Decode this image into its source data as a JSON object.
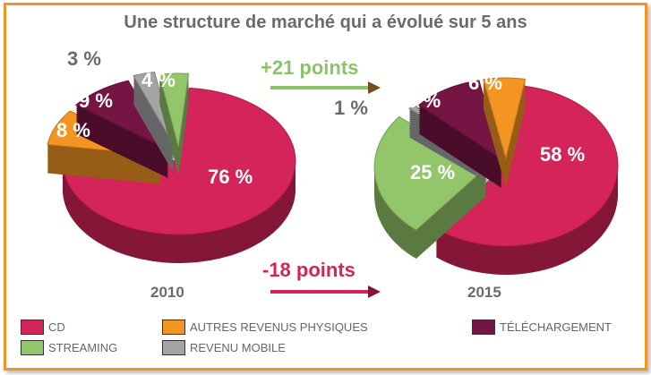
{
  "chart_data": {
    "type": "pie",
    "title": "Une structure de marché qui a évolué sur 5 ans",
    "categories": [
      "CD",
      "AUTRES REVENUS PHYSIQUES",
      "TÉLÉCHARGEMENT",
      "STREAMING",
      "REVENU MOBILE"
    ],
    "colors": {
      "CD": "#d5245a",
      "AUTRES REVENUS PHYSIQUES": "#f39423",
      "TÉLÉCHARGEMENT": "#751543",
      "STREAMING": "#93c56b",
      "REVENU MOBILE": "#a4a4a7"
    },
    "pies": [
      {
        "year": "2010",
        "values": {
          "CD": 76,
          "AUTRES REVENUS PHYSIQUES": 8,
          "TÉLÉCHARGEMENT": 9,
          "REVENU MOBILE": 3,
          "STREAMING": 4
        },
        "labels": {
          "CD": "76 %",
          "AUTRES REVENUS PHYSIQUES": "8 %",
          "TÉLÉCHARGEMENT": "9 %",
          "REVENU MOBILE": "3 %",
          "STREAMING": "4 %"
        }
      },
      {
        "year": "2015",
        "values": {
          "CD": 58,
          "STREAMING": 25,
          "REVENU MOBILE": 1,
          "TÉLÉCHARGEMENT": 10,
          "AUTRES REVENUS PHYSIQUES": 6
        },
        "labels": {
          "CD": "58 %",
          "STREAMING": "25 %",
          "REVENU MOBILE": "1 %",
          "TÉLÉCHARGEMENT": "10 %",
          "AUTRES REVENUS PHYSIQUES": "6 %"
        }
      }
    ],
    "annotations": {
      "streaming_change": "+21 points",
      "cd_change": "-18 points"
    },
    "legend": {
      "placement": "bottom",
      "entries": [
        "CD",
        "AUTRES REVENUS PHYSIQUES",
        "TÉLÉCHARGEMENT",
        "STREAMING",
        "REVENU MOBILE"
      ]
    }
  }
}
